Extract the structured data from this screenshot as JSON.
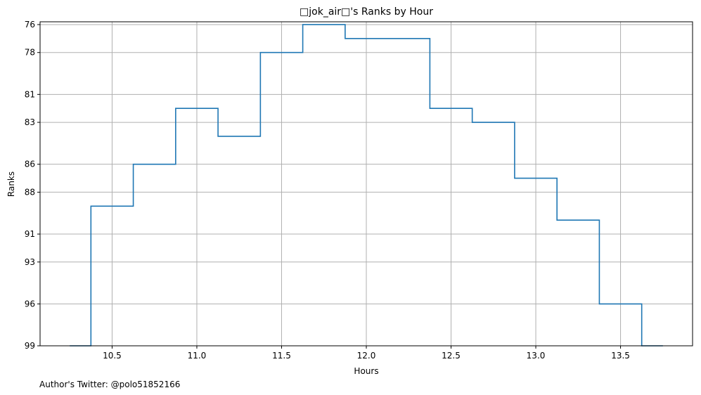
{
  "chart_data": {
    "type": "line",
    "drawstyle": "steps-mid",
    "title": "□jok_air□'s Ranks by Hour",
    "xlabel": "Hours",
    "ylabel": "Ranks",
    "footer": "Author's Twitter: @polo51852166",
    "xlim": [
      10.075,
      13.925
    ],
    "ylim": [
      99.0,
      75.8
    ],
    "y_inverted": true,
    "x_ticks": [
      10.5,
      11.0,
      11.5,
      12.0,
      12.5,
      13.0,
      13.5
    ],
    "x_tick_labels": [
      "10.5",
      "11.0",
      "11.5",
      "12.0",
      "12.5",
      "13.0",
      "13.5"
    ],
    "y_ticks": [
      76,
      78,
      81,
      83,
      86,
      88,
      91,
      93,
      96,
      99
    ],
    "y_tick_labels": [
      "76",
      "78",
      "81",
      "83",
      "86",
      "88",
      "91",
      "93",
      "96",
      "99"
    ],
    "grid": true,
    "series": [
      {
        "color": "#1f77b4",
        "x": [
          10.25,
          10.5,
          10.75,
          11.0,
          11.25,
          11.5,
          11.75,
          12.0,
          12.25,
          12.5,
          12.75,
          13.0,
          13.25,
          13.5,
          13.75
        ],
        "y": [
          99,
          89,
          86,
          82,
          84,
          78,
          76,
          77,
          77,
          82,
          83,
          87,
          90,
          96,
          99
        ]
      }
    ],
    "colors": {
      "grid": "#b0b0b0",
      "axes": "#000000",
      "background": "#ffffff"
    }
  }
}
